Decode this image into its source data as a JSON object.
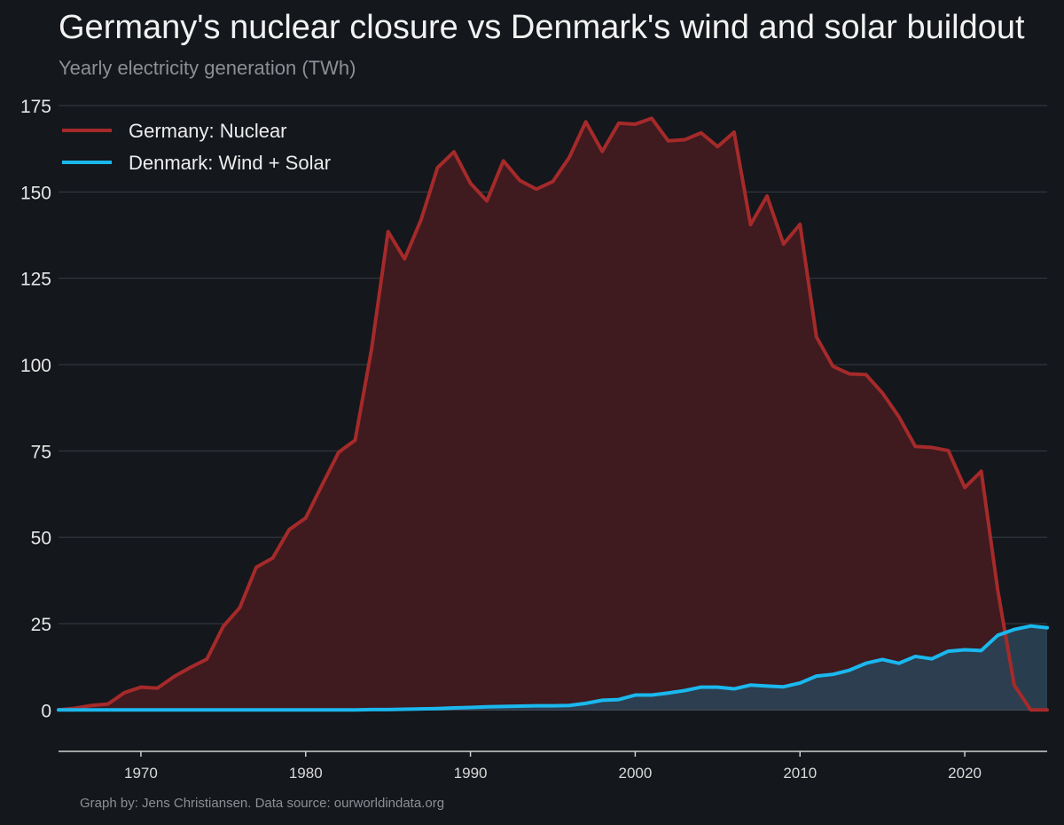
{
  "title": "Germany's nuclear closure vs Denmark's wind and solar buildout",
  "subtitle": "Yearly electricity generation (TWh)",
  "credit": "Graph by: Jens Christiansen. Data source: ourworldindata.org",
  "chart_data": {
    "type": "area",
    "title": "Germany's nuclear closure vs Denmark's wind and solar buildout",
    "subtitle": "Yearly electricity generation (TWh)",
    "xlabel": "",
    "ylabel": "",
    "xlim": [
      1965,
      2025
    ],
    "ylim": [
      -12,
      175
    ],
    "yticks": [
      0,
      25,
      50,
      75,
      100,
      125,
      150,
      175
    ],
    "xticks": [
      1970,
      1980,
      1990,
      2000,
      2010,
      2020
    ],
    "grid": true,
    "legend_position": "top-left",
    "x": [
      1965,
      1966,
      1967,
      1968,
      1969,
      1970,
      1971,
      1972,
      1973,
      1974,
      1975,
      1976,
      1977,
      1978,
      1979,
      1980,
      1981,
      1982,
      1983,
      1984,
      1985,
      1986,
      1987,
      1988,
      1989,
      1990,
      1991,
      1992,
      1993,
      1994,
      1995,
      1996,
      1997,
      1998,
      1999,
      2000,
      2001,
      2002,
      2003,
      2004,
      2005,
      2006,
      2007,
      2008,
      2009,
      2010,
      2011,
      2012,
      2013,
      2014,
      2015,
      2016,
      2017,
      2018,
      2019,
      2020,
      2021,
      2022,
      2023,
      2024,
      2025
    ],
    "series": [
      {
        "name": "Germany: Nuclear",
        "color": "#a52a2a",
        "fill": "#3f1a1f",
        "values": [
          0.0,
          0.5,
          1.3,
          1.7,
          5.0,
          6.6,
          6.3,
          9.6,
          12.3,
          14.7,
          24.2,
          29.6,
          41.3,
          44.0,
          52.2,
          55.6,
          65.2,
          74.6,
          78.1,
          104.5,
          138.5,
          130.6,
          141.9,
          157.0,
          161.6,
          152.5,
          147.4,
          159.0,
          153.3,
          150.8,
          153.0,
          160.0,
          170.3,
          161.7,
          169.9,
          169.6,
          171.3,
          164.8,
          165.1,
          167.1,
          163.1,
          167.3,
          140.5,
          148.8,
          134.9,
          140.6,
          108.0,
          99.5,
          97.3,
          97.1,
          91.8,
          84.9,
          76.3,
          76.0,
          75.1,
          64.4,
          69.1,
          34.7,
          7.2,
          0.0,
          0.0
        ]
      },
      {
        "name": "Denmark: Wind + Solar",
        "color": "#1ab8ee",
        "fill": "#2a4255",
        "values": [
          0.0,
          0.0,
          0.0,
          0.0,
          0.0,
          0.0,
          0.0,
          0.0,
          0.0,
          0.0,
          0.0,
          0.0,
          0.0,
          0.0,
          0.0,
          0.0,
          0.0,
          0.0,
          0.0,
          0.1,
          0.1,
          0.2,
          0.3,
          0.4,
          0.6,
          0.7,
          0.9,
          1.0,
          1.1,
          1.2,
          1.2,
          1.3,
          1.9,
          2.8,
          3.0,
          4.3,
          4.3,
          4.9,
          5.6,
          6.6,
          6.6,
          6.1,
          7.2,
          6.9,
          6.7,
          7.8,
          9.8,
          10.3,
          11.5,
          13.5,
          14.6,
          13.5,
          15.5,
          14.8,
          17.0,
          17.4,
          17.2,
          21.6,
          23.3,
          24.3,
          23.8
        ]
      }
    ]
  }
}
